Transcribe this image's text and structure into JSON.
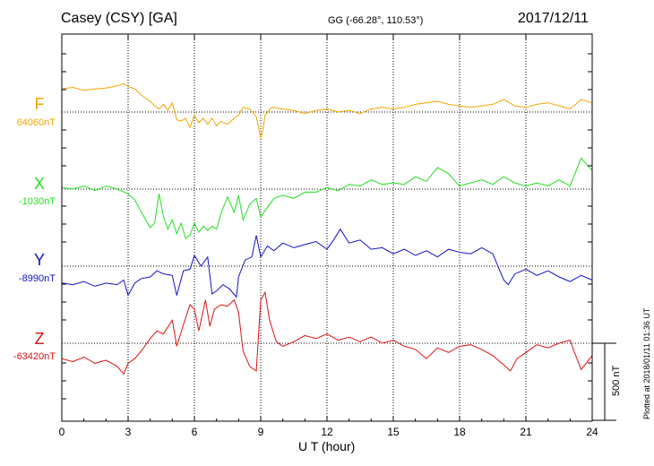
{
  "header": {
    "station": "Casey (CSY)  [GA]",
    "coords": "GG (-66.28°, 110.53°)",
    "date": "2017/12/11"
  },
  "footer": {
    "plotted": "Plotted at 2018/01/11 01:36 UT"
  },
  "chart_data": {
    "type": "line",
    "title": "Casey (CSY)  [GA]",
    "xlabel": "U T (hour)",
    "ylabel": "",
    "xlim": [
      0,
      24
    ],
    "x_ticks": [
      0,
      3,
      6,
      9,
      12,
      15,
      18,
      21,
      24
    ],
    "grid": true,
    "scale_bar": {
      "label": "500 nT",
      "value_nT": 500
    },
    "series": [
      {
        "name": "F",
        "baseline_label": "64060nT",
        "baseline_nT": 64060,
        "color": "#f5a500",
        "x": [
          0,
          0.5,
          1,
          1.5,
          2,
          2.5,
          2.8,
          3,
          3.3,
          3.6,
          4,
          4.2,
          4.4,
          4.6,
          4.8,
          5,
          5.2,
          5.4,
          5.6,
          5.8,
          6,
          6.2,
          6.4,
          6.6,
          6.8,
          7,
          7.2,
          7.5,
          7.8,
          8,
          8.2,
          8.5,
          8.8,
          9,
          9.1,
          9.2,
          9.5,
          10,
          10.5,
          11,
          11.5,
          12,
          12.5,
          13,
          13.5,
          14,
          14.5,
          15,
          15.5,
          16,
          16.5,
          17,
          17.5,
          18,
          18.5,
          19,
          19.5,
          20,
          20.5,
          21,
          21.5,
          22,
          22.5,
          23,
          23.5,
          24
        ],
        "values": [
          150,
          160,
          140,
          150,
          155,
          170,
          185,
          165,
          150,
          110,
          70,
          40,
          20,
          50,
          10,
          60,
          -50,
          -60,
          -40,
          -100,
          -20,
          -70,
          -40,
          -80,
          -40,
          -90,
          -60,
          -80,
          -40,
          -20,
          30,
          20,
          -30,
          -170,
          -120,
          -20,
          30,
          20,
          10,
          -10,
          10,
          20,
          0,
          10,
          -10,
          20,
          30,
          20,
          30,
          50,
          60,
          70,
          50,
          40,
          30,
          40,
          50,
          80,
          40,
          30,
          50,
          60,
          40,
          20,
          80,
          60
        ]
      },
      {
        "name": "X",
        "baseline_label": "-1030nT",
        "baseline_nT": -1030,
        "color": "#22dd22",
        "x": [
          0,
          0.5,
          1,
          1.5,
          2,
          2.5,
          3,
          3.3,
          3.6,
          4,
          4.2,
          4.4,
          4.6,
          4.8,
          5,
          5.2,
          5.4,
          5.6,
          5.8,
          6,
          6.2,
          6.4,
          6.6,
          6.8,
          7,
          7.2,
          7.5,
          7.8,
          8,
          8.2,
          8.5,
          8.8,
          9,
          9.3,
          9.6,
          10,
          10.5,
          11,
          11.5,
          12,
          12.5,
          13,
          13.5,
          14,
          14.5,
          15,
          15.5,
          16,
          16.5,
          17,
          17.5,
          18,
          18.5,
          19,
          19.5,
          20,
          20.5,
          21,
          21.5,
          22,
          22.5,
          23,
          23.5,
          24
        ],
        "values": [
          10,
          0,
          20,
          -10,
          20,
          0,
          -30,
          -70,
          -150,
          -250,
          -220,
          -30,
          -180,
          -260,
          -200,
          -290,
          -220,
          -320,
          -300,
          -220,
          -280,
          -240,
          -270,
          -240,
          -260,
          -160,
          -50,
          -150,
          -40,
          -200,
          -100,
          -60,
          -180,
          -120,
          -60,
          -40,
          -60,
          -20,
          -20,
          10,
          -10,
          30,
          20,
          60,
          30,
          40,
          30,
          80,
          50,
          140,
          100,
          20,
          40,
          60,
          30,
          80,
          40,
          20,
          40,
          20,
          60,
          20,
          200,
          120
        ]
      },
      {
        "name": "Y",
        "baseline_label": "-8990nT",
        "baseline_nT": -8990,
        "color": "#1111cc",
        "x": [
          0,
          0.5,
          1,
          1.5,
          2,
          2.5,
          2.8,
          3,
          3.3,
          3.6,
          4,
          4.3,
          4.6,
          5,
          5.2,
          5.5,
          5.8,
          6,
          6.3,
          6.6,
          6.8,
          7,
          7.3,
          7.6,
          7.9,
          8,
          8.3,
          8.6,
          8.8,
          9,
          9.3,
          9.6,
          10,
          10.5,
          11,
          11.5,
          12,
          12.3,
          12.6,
          13,
          13.5,
          14,
          14.5,
          15,
          15.5,
          16,
          16.5,
          17,
          17.5,
          18,
          18.5,
          19,
          19.5,
          20,
          20.2,
          20.5,
          21,
          21.5,
          22,
          22.5,
          23,
          23.5,
          24
        ],
        "values": [
          -110,
          -120,
          -100,
          -130,
          -110,
          -120,
          -90,
          -190,
          -110,
          -80,
          -70,
          -30,
          -50,
          -60,
          -190,
          -30,
          -20,
          70,
          0,
          60,
          -180,
          -160,
          -120,
          -150,
          -200,
          -70,
          40,
          60,
          200,
          60,
          130,
          100,
          150,
          120,
          140,
          160,
          110,
          170,
          240,
          150,
          170,
          110,
          120,
          80,
          110,
          70,
          100,
          60,
          110,
          90,
          80,
          120,
          80,
          -90,
          -120,
          -50,
          -20,
          -60,
          -30,
          -70,
          -100,
          -60,
          -90
        ]
      },
      {
        "name": "Z",
        "baseline_label": "-63420nT",
        "baseline_nT": -63420,
        "color": "#dd1111",
        "x": [
          0,
          0.5,
          1,
          1.5,
          2,
          2.5,
          2.8,
          3,
          3.3,
          3.6,
          4,
          4.3,
          4.6,
          5,
          5.2,
          5.5,
          5.8,
          6,
          6.2,
          6.5,
          6.7,
          6.9,
          7.2,
          7.5,
          7.8,
          8,
          8.2,
          8.5,
          8.8,
          9,
          9.2,
          9.4,
          9.7,
          10,
          10.5,
          11,
          11.5,
          12,
          12.5,
          13,
          13.5,
          14,
          14.5,
          15,
          15.5,
          16,
          16.5,
          17,
          17.5,
          18,
          18.5,
          19,
          19.5,
          20,
          20.3,
          20.6,
          21,
          21.5,
          22,
          22.5,
          23,
          23.2,
          23.5,
          24
        ],
        "values": [
          -100,
          -120,
          -90,
          -130,
          -110,
          -150,
          -200,
          -130,
          -100,
          -50,
          30,
          80,
          60,
          150,
          -20,
          120,
          250,
          220,
          80,
          280,
          110,
          220,
          250,
          240,
          280,
          200,
          -50,
          -150,
          -180,
          280,
          330,
          150,
          10,
          -20,
          10,
          50,
          30,
          60,
          20,
          40,
          10,
          40,
          0,
          20,
          -20,
          -40,
          -100,
          -30,
          -60,
          -20,
          -10,
          -40,
          -80,
          -140,
          -180,
          -100,
          -60,
          -10,
          -30,
          0,
          20,
          -60,
          -170,
          -80
        ]
      }
    ]
  }
}
